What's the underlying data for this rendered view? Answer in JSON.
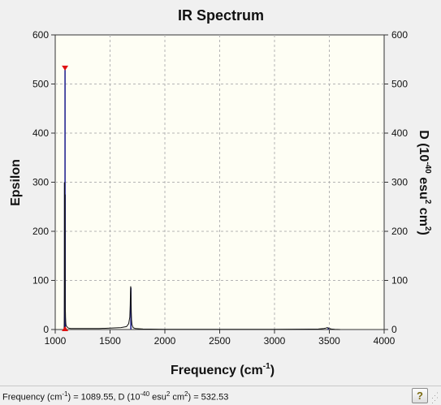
{
  "window": {
    "title": "IR Spectrum"
  },
  "status": {
    "freq_prefix": "Frequency (cm",
    "freq_exp": "-1",
    "freq_mid": ") = 1089.55, D (10",
    "d_exp": "-40",
    "d_unit": " esu",
    "sq1": "2",
    "cm": " cm",
    "sq2": "2",
    "d_value": ") = 532.53",
    "help_icon": "?"
  },
  "chart_data": {
    "type": "line",
    "title": "IR Spectrum",
    "xlabel_main": "Frequency (cm",
    "xlabel_exp": "-1",
    "xlabel_close": ")",
    "ylabel_left": "Epsilon",
    "ylabel_right": {
      "d": "D (10",
      "exp40": "-40",
      "esu": " esu",
      "sq1": "2",
      "cm": " cm",
      "sq2": "2",
      "close": ")"
    },
    "xlim": [
      1000,
      4000
    ],
    "ylim": [
      0,
      600
    ],
    "x_ticks": [
      "1000",
      "1500",
      "2000",
      "2500",
      "3000",
      "3500",
      "4000"
    ],
    "y_ticks_left": [
      "0",
      "100",
      "200",
      "300",
      "400",
      "500",
      "600"
    ],
    "y_ticks_right": [
      "0",
      "100",
      "200",
      "300",
      "400",
      "500",
      "600"
    ],
    "grid": true,
    "spectrum": {
      "x": [
        1080,
        1081,
        1082,
        1083,
        1084,
        1085,
        1086,
        1087,
        1088,
        1089,
        1090,
        1091,
        1092,
        1093,
        1094,
        1095,
        1096,
        1097,
        1098,
        1100,
        1105,
        1110,
        1120,
        1140,
        1200,
        1300,
        1400,
        1500,
        1600,
        1650,
        1670,
        1680,
        1684,
        1686,
        1688,
        1690,
        1692,
        1694,
        1696,
        1700,
        1710,
        1730,
        1800,
        2000,
        2500,
        3000,
        3400,
        3450,
        3470,
        3480,
        3490,
        3500,
        3520,
        3550,
        3600
      ],
      "y": [
        0,
        2,
        10,
        30,
        90,
        300,
        180,
        120,
        200,
        275,
        140,
        60,
        40,
        35,
        25,
        20,
        15,
        12,
        10,
        8,
        6,
        5,
        3,
        2,
        2,
        2,
        2,
        3,
        4,
        6,
        12,
        25,
        50,
        75,
        88,
        85,
        60,
        35,
        20,
        10,
        4,
        2,
        1,
        0.5,
        0.5,
        0.5,
        1,
        2,
        3,
        4,
        3,
        2,
        1,
        0.5,
        0
      ]
    },
    "sticks": [
      {
        "x": 1085,
        "y": 300
      },
      {
        "x": 1089.55,
        "y": 532.53
      },
      {
        "x": 1091,
        "y": 275
      },
      {
        "x": 1690,
        "y": 85
      },
      {
        "x": 3490,
        "y": 4
      }
    ],
    "selected": {
      "x": 1089.55,
      "y": 532.53
    },
    "colors": {
      "plot_bg": "#fefef4",
      "grid": "#b4b4b4",
      "spectrum": "#111111",
      "stick": "#1a1a8c",
      "marker": "#e01010"
    }
  }
}
